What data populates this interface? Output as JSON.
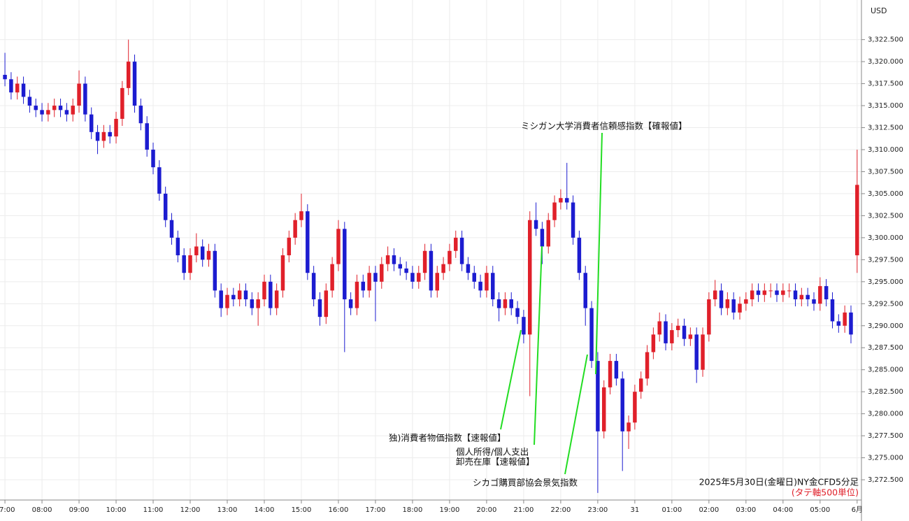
{
  "chart_data": {
    "type": "candlestick",
    "title": "2025年5月30日(金曜日)NY金CFD5分足",
    "subtitle": "(タテ軸500単位)",
    "y_axis_label": "USD",
    "annotations": [
      "ミシガン大学消費者信頼感指数【確報値】",
      "独)消費者物価指数【速報値】",
      "個人所得/個人支出",
      "卸売在庫【速報値】",
      "シカゴ購買部協会景気指数"
    ],
    "up_color": "#e0202a",
    "down_color": "#1c1cd0",
    "grid": true,
    "xlim": [
      -0.8,
      138.7
    ],
    "xticks": [
      {
        "value": 0,
        "label": "07:00"
      },
      {
        "value": 6,
        "label": "08:00"
      },
      {
        "value": 12,
        "label": "09:00"
      },
      {
        "value": 18,
        "label": "10:00"
      },
      {
        "value": 24,
        "label": "11:00"
      },
      {
        "value": 30,
        "label": "12:00"
      },
      {
        "value": 36,
        "label": "13:00"
      },
      {
        "value": 42,
        "label": "14:00"
      },
      {
        "value": 48,
        "label": "15:00"
      },
      {
        "value": 54,
        "label": "16:00"
      },
      {
        "value": 60,
        "label": "17:00"
      },
      {
        "value": 66,
        "label": "18:00"
      },
      {
        "value": 72,
        "label": "19:00"
      },
      {
        "value": 78,
        "label": "20:00"
      },
      {
        "value": 84,
        "label": "21:00"
      },
      {
        "value": 90,
        "label": "22:00"
      },
      {
        "value": 96,
        "label": "23:00"
      },
      {
        "value": 102,
        "label": "31"
      },
      {
        "value": 108,
        "label": "01:00"
      },
      {
        "value": 114,
        "label": "02:00"
      },
      {
        "value": 120,
        "label": "03:00"
      },
      {
        "value": 126,
        "label": "04:00"
      },
      {
        "value": 132,
        "label": "05:00"
      },
      {
        "value": 138,
        "label": "6月"
      }
    ],
    "ylim": [
      3270.2,
      3327.0
    ],
    "yticks": [
      {
        "value": 3272.5,
        "label": "3,272.500"
      },
      {
        "value": 3275,
        "label": "3,275.000"
      },
      {
        "value": 3277.5,
        "label": "3,277.500"
      },
      {
        "value": 3280,
        "label": "3,280.000"
      },
      {
        "value": 3282.5,
        "label": "3,282.500"
      },
      {
        "value": 3285,
        "label": "3,285.000"
      },
      {
        "value": 3287.5,
        "label": "3,287.500"
      },
      {
        "value": 3290,
        "label": "3,290.000"
      },
      {
        "value": 3292.5,
        "label": "3,292.500"
      },
      {
        "value": 3295,
        "label": "3,295.000"
      },
      {
        "value": 3297.5,
        "label": "3,297.500"
      },
      {
        "value": 3300,
        "label": "3,300.000"
      },
      {
        "value": 3302.5,
        "label": "3,302.500"
      },
      {
        "value": 3305,
        "label": "3,305.000"
      },
      {
        "value": 3307.5,
        "label": "3,307.500"
      },
      {
        "value": 3310,
        "label": "3,310.000"
      },
      {
        "value": 3312.5,
        "label": "3,312.500"
      },
      {
        "value": 3315,
        "label": "3,315.000"
      },
      {
        "value": 3317.5,
        "label": "3,317.500"
      },
      {
        "value": 3320,
        "label": "3,320.000"
      },
      {
        "value": 3322.5,
        "label": "3,322.500"
      }
    ],
    "open": [
      3318.5,
      3318,
      3316.5,
      3317.5,
      3316,
      3315,
      3314.5,
      3314,
      3314.5,
      3315,
      3314.5,
      3314,
      3315,
      3317.5,
      3314,
      3312,
      3311,
      3312,
      3311.5,
      3313.5,
      3317,
      3320,
      3315,
      3313,
      3310,
      3308,
      3305,
      3302,
      3300,
      3298,
      3296,
      3298,
      3299,
      3297.5,
      3298.5,
      3294,
      3292,
      3293.5,
      3293,
      3294,
      3293,
      3292,
      3293,
      3295,
      3292,
      3294,
      3298,
      3300,
      3302,
      3303,
      3296,
      3293,
      3291,
      3294,
      3297,
      3301,
      3293,
      3292,
      3295,
      3294,
      3296,
      3295,
      3297,
      3298,
      3297,
      3296.5,
      3296,
      3295,
      3296,
      3298.5,
      3294,
      3296,
      3297,
      3298.5,
      3300,
      3297,
      3296,
      3295,
      3294,
      3296,
      3293,
      3292,
      3293,
      3292,
      3291,
      3289,
      3302,
      3301,
      3299,
      3302,
      3304,
      3304.5,
      3304,
      3300,
      3296,
      3292,
      3286,
      3278,
      3283,
      3286,
      3284,
      3278,
      3279,
      3282.5,
      3284,
      3287,
      3289,
      3290.5,
      3288,
      3289.5,
      3290,
      3288.5,
      3289,
      3285,
      3289,
      3293,
      3294,
      3292,
      3293,
      3291.5,
      3292.5,
      3293,
      3294,
      3293.5,
      3294,
      3294,
      3293.5,
      3294,
      3294,
      3293,
      3293.5,
      3293,
      3292.5,
      3294.5,
      3293,
      3290.5,
      3290,
      3291.5,
      3298
    ],
    "high": [
      3321,
      3318.8,
      3318.3,
      3318.3,
      3316.8,
      3315.8,
      3315.3,
      3315.3,
      3315.8,
      3315.8,
      3315.3,
      3315.8,
      3319,
      3318.3,
      3314.8,
      3312.8,
      3312.8,
      3312.8,
      3314.3,
      3317.8,
      3322.5,
      3320.8,
      3315.8,
      3313.8,
      3310.8,
      3308.8,
      3305.8,
      3302.8,
      3300.8,
      3298.8,
      3298.8,
      3300.5,
      3299.8,
      3299.3,
      3299.3,
      3294.8,
      3294.3,
      3294.3,
      3294.8,
      3294.8,
      3293.8,
      3293.8,
      3295.8,
      3295.8,
      3294.8,
      3298.8,
      3300.8,
      3302.8,
      3305,
      3303.8,
      3296.8,
      3293.8,
      3294.8,
      3297.8,
      3302,
      3301.8,
      3293.8,
      3295.8,
      3295.8,
      3296.8,
      3296.8,
      3297.8,
      3299,
      3298.8,
      3297.8,
      3297.3,
      3296.8,
      3296.8,
      3299.3,
      3299.3,
      3296.8,
      3297.8,
      3299.3,
      3300.8,
      3300.8,
      3297.8,
      3296.8,
      3295.8,
      3296.8,
      3296.8,
      3293.8,
      3293.8,
      3293.8,
      3292.8,
      3291.8,
      3303,
      3304,
      3301.8,
      3302.8,
      3304.8,
      3305.5,
      3308.5,
      3304.8,
      3300.8,
      3296.8,
      3292.8,
      3287,
      3283.8,
      3286.8,
      3286.8,
      3284.8,
      3279.8,
      3283.3,
      3284.8,
      3287.8,
      3289.8,
      3291.5,
      3291.3,
      3290.3,
      3290.8,
      3290.8,
      3289.8,
      3289.8,
      3289.8,
      3293.8,
      3295.2,
      3294.8,
      3293.8,
      3293.8,
      3293.3,
      3293.8,
      3294.8,
      3294.8,
      3294.8,
      3294.8,
      3294.8,
      3294.8,
      3294.8,
      3294.8,
      3294.3,
      3294.3,
      3293.8,
      3295.5,
      3295.3,
      3293.8,
      3291.3,
      3292.3,
      3292.3,
      3310
    ],
    "low": [
      3317.2,
      3315.7,
      3315.7,
      3315.2,
      3314.2,
      3313.7,
      3313.2,
      3313.2,
      3313.7,
      3313.7,
      3313.2,
      3313.2,
      3314.2,
      3313.2,
      3311.2,
      3309.5,
      3310.2,
      3310.7,
      3310.7,
      3312.7,
      3316.2,
      3314.2,
      3312.2,
      3309.2,
      3307.2,
      3304.2,
      3301.2,
      3299.2,
      3297.2,
      3295.2,
      3295.2,
      3297.2,
      3296.7,
      3296.7,
      3293.2,
      3291,
      3291.2,
      3292.2,
      3292.2,
      3292.2,
      3291.2,
      3290,
      3292.2,
      3291.2,
      3291.2,
      3293.2,
      3297.2,
      3299.2,
      3301.2,
      3295.2,
      3292.2,
      3290,
      3290.2,
      3293.2,
      3296.2,
      3287,
      3291.2,
      3291.2,
      3293.2,
      3293.2,
      3290.5,
      3294.2,
      3296.2,
      3296.2,
      3295.7,
      3295.2,
      3294.2,
      3294.2,
      3295.2,
      3293.2,
      3293.2,
      3295.2,
      3296.2,
      3297.7,
      3296.2,
      3295.2,
      3294.2,
      3293.2,
      3293.2,
      3292.2,
      3290.5,
      3291.2,
      3291.2,
      3290.2,
      3288,
      3282,
      3300.2,
      3297,
      3298.2,
      3301.2,
      3303.2,
      3303.2,
      3299.2,
      3295.2,
      3290,
      3285.2,
      3271,
      3277.2,
      3282.2,
      3283.2,
      3273.5,
      3276,
      3278.2,
      3281.7,
      3283.2,
      3286.2,
      3288.2,
      3287.2,
      3287.2,
      3288.7,
      3287.7,
      3287.7,
      3283.5,
      3284.2,
      3288.2,
      3292.2,
      3291.2,
      3291.2,
      3290.7,
      3290.7,
      3291.7,
      3292.2,
      3292.7,
      3292.7,
      3293.2,
      3292.7,
      3292.7,
      3293.2,
      3292.2,
      3292.2,
      3292.2,
      3291.7,
      3291.7,
      3292.2,
      3289.7,
      3289.2,
      3289.2,
      3288,
      3296
    ],
    "close": [
      3318,
      3316.5,
      3317.5,
      3316,
      3315,
      3314.5,
      3314,
      3314.5,
      3315,
      3314.5,
      3314,
      3315,
      3317.5,
      3314,
      3312,
      3311,
      3312,
      3311.5,
      3313.5,
      3317,
      3320,
      3315,
      3313,
      3310,
      3308,
      3305,
      3302,
      3300,
      3298,
      3296,
      3298,
      3299,
      3297.5,
      3298.5,
      3294,
      3292,
      3293.5,
      3293,
      3294,
      3293,
      3292,
      3293,
      3295,
      3292,
      3294,
      3298,
      3300,
      3302,
      3303,
      3296,
      3293,
      3291,
      3294,
      3297,
      3301,
      3293,
      3292,
      3295,
      3294,
      3296,
      3295,
      3297,
      3298,
      3297,
      3296.5,
      3296,
      3295,
      3296,
      3298.5,
      3294,
      3296,
      3297,
      3298.5,
      3300,
      3297,
      3296,
      3295,
      3294,
      3296,
      3293,
      3292,
      3293,
      3292,
      3291,
      3289,
      3302,
      3301,
      3299,
      3302,
      3304,
      3304.5,
      3304,
      3300,
      3296,
      3292,
      3286,
      3278,
      3283,
      3286,
      3284,
      3278,
      3279,
      3282.5,
      3284,
      3287,
      3289,
      3290.5,
      3288,
      3289.5,
      3290,
      3288.5,
      3289,
      3285,
      3289,
      3293,
      3294,
      3292,
      3293,
      3291.5,
      3292.5,
      3293,
      3294,
      3293.5,
      3294,
      3294,
      3293.5,
      3294,
      3294,
      3293,
      3293.5,
      3293,
      3292.5,
      3294.5,
      3293,
      3290.5,
      3290,
      3291.5,
      3289,
      3306
    ]
  }
}
